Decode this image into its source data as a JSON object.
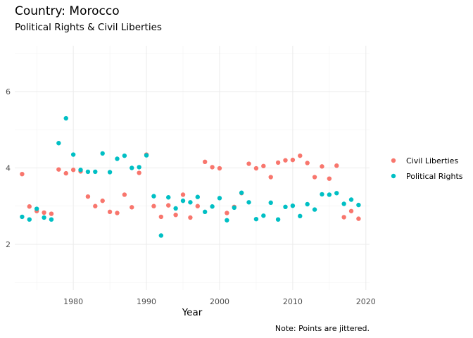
{
  "title": "Country: Morocco",
  "subtitle": "Political Rights & Civil Liberties",
  "caption": "Note: Points are jittered.",
  "chart_data": {
    "type": "scatter",
    "xlabel": "Year",
    "ylabel": "",
    "xlim": [
      1972,
      2020.5
    ],
    "ylim": [
      0.8,
      7.2
    ],
    "x_ticks": [
      1980,
      1990,
      2000,
      2010,
      2020
    ],
    "y_ticks": [
      2,
      4,
      6
    ],
    "x_tick_labels": [
      "1980",
      "1990",
      "2000",
      "2010",
      "2020"
    ],
    "y_tick_labels": [
      "2",
      "4",
      "6"
    ],
    "grid": true,
    "legend_position": "right",
    "series": [
      {
        "name": "Civil Liberties",
        "color": "#F8766D",
        "points": [
          [
            1973,
            3.84
          ],
          [
            1974,
            2.99
          ],
          [
            1975,
            2.87
          ],
          [
            1976,
            2.83
          ],
          [
            1977,
            2.8
          ],
          [
            1978,
            3.96
          ],
          [
            1979,
            3.86
          ],
          [
            1980,
            3.95
          ],
          [
            1981,
            3.91
          ],
          [
            1982,
            3.25
          ],
          [
            1983,
            3.0
          ],
          [
            1984,
            3.14
          ],
          [
            1985,
            2.85
          ],
          [
            1986,
            2.82
          ],
          [
            1987,
            3.3
          ],
          [
            1988,
            2.97
          ],
          [
            1989,
            3.87
          ],
          [
            1990,
            4.35
          ],
          [
            1991,
            3.0
          ],
          [
            1992,
            2.72
          ],
          [
            1993,
            3.02
          ],
          [
            1994,
            2.77
          ],
          [
            1995,
            3.3
          ],
          [
            1996,
            2.7
          ],
          [
            1997,
            3.0
          ],
          [
            1998,
            4.16
          ],
          [
            1999,
            4.02
          ],
          [
            2000,
            3.99
          ],
          [
            2001,
            2.82
          ],
          [
            2002,
            2.98
          ],
          [
            2003,
            3.34
          ],
          [
            2004,
            4.11
          ],
          [
            2005,
            3.99
          ],
          [
            2006,
            4.05
          ],
          [
            2007,
            3.76
          ],
          [
            2008,
            4.14
          ],
          [
            2009,
            4.2
          ],
          [
            2010,
            4.21
          ],
          [
            2011,
            4.32
          ],
          [
            2012,
            4.13
          ],
          [
            2013,
            3.76
          ],
          [
            2014,
            4.04
          ],
          [
            2015,
            3.72
          ],
          [
            2016,
            4.06
          ],
          [
            2017,
            2.71
          ],
          [
            2018,
            2.87
          ],
          [
            2019,
            2.67
          ]
        ]
      },
      {
        "name": "Political Rights",
        "color": "#00BFC4",
        "points": [
          [
            1973,
            2.72
          ],
          [
            1974,
            2.65
          ],
          [
            1975,
            2.93
          ],
          [
            1976,
            2.7
          ],
          [
            1977,
            2.65
          ],
          [
            1978,
            4.65
          ],
          [
            1979,
            5.3
          ],
          [
            1980,
            4.35
          ],
          [
            1981,
            3.95
          ],
          [
            1982,
            3.9
          ],
          [
            1983,
            3.9
          ],
          [
            1984,
            4.38
          ],
          [
            1985,
            3.89
          ],
          [
            1986,
            4.24
          ],
          [
            1987,
            4.32
          ],
          [
            1988,
            4.0
          ],
          [
            1989,
            4.02
          ],
          [
            1990,
            4.33
          ],
          [
            1991,
            3.26
          ],
          [
            1992,
            2.23
          ],
          [
            1993,
            3.23
          ],
          [
            1994,
            2.94
          ],
          [
            1995,
            3.14
          ],
          [
            1996,
            3.1
          ],
          [
            1997,
            3.24
          ],
          [
            1998,
            2.85
          ],
          [
            1999,
            2.99
          ],
          [
            2000,
            3.21
          ],
          [
            2001,
            2.63
          ],
          [
            2002,
            2.96
          ],
          [
            2003,
            3.35
          ],
          [
            2004,
            3.1
          ],
          [
            2005,
            2.66
          ],
          [
            2006,
            2.75
          ],
          [
            2007,
            3.09
          ],
          [
            2008,
            2.65
          ],
          [
            2009,
            2.98
          ],
          [
            2010,
            3.01
          ],
          [
            2011,
            2.74
          ],
          [
            2012,
            3.05
          ],
          [
            2013,
            2.91
          ],
          [
            2014,
            3.31
          ],
          [
            2015,
            3.3
          ],
          [
            2016,
            3.34
          ],
          [
            2017,
            3.06
          ],
          [
            2018,
            3.17
          ],
          [
            2019,
            3.03
          ]
        ]
      }
    ]
  }
}
